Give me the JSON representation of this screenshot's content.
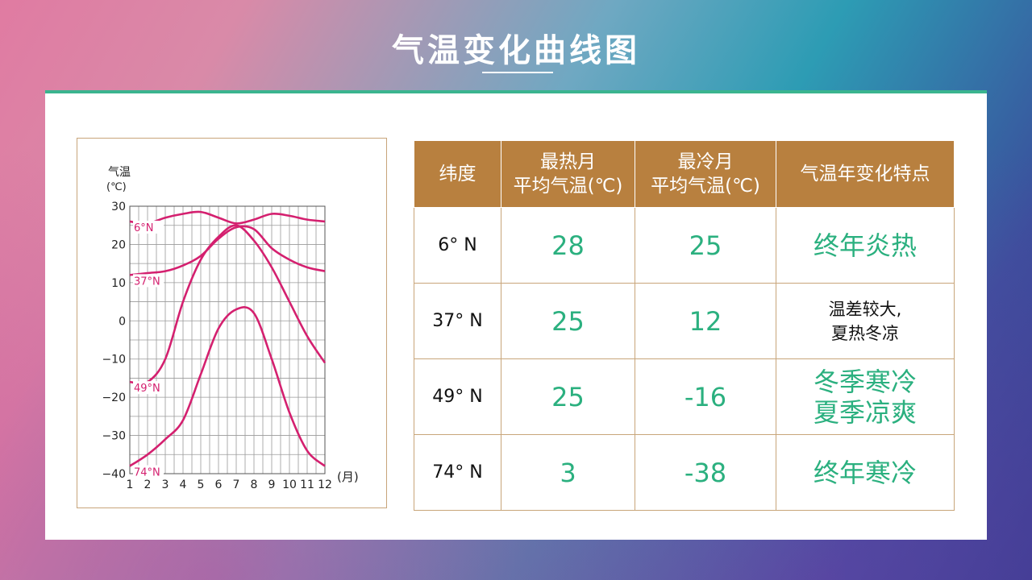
{
  "title": "气温变化曲线图",
  "chart_data": {
    "type": "line",
    "ylabel_line1": "气温",
    "ylabel_line2": "(℃)",
    "x_unit": "(月)",
    "x": [
      1,
      2,
      3,
      4,
      5,
      6,
      7,
      8,
      9,
      10,
      11,
      12
    ],
    "xticks": [
      "1",
      "2",
      "3",
      "4",
      "5",
      "6",
      "7",
      "8",
      "9",
      "10",
      "11",
      "12"
    ],
    "yticks": [
      30,
      20,
      10,
      0,
      -10,
      -20,
      -30,
      -40
    ],
    "ytick_labels": [
      "30",
      "20",
      "10",
      "0",
      "−10",
      "−20",
      "−30",
      "−40"
    ],
    "ylim": [
      -40,
      30
    ],
    "grid": true,
    "line_color": "#d4206f",
    "series": [
      {
        "name": "6°N",
        "values": [
          26,
          25.5,
          27,
          28,
          28.5,
          27,
          25.5,
          26.5,
          28,
          27.5,
          26.5,
          26
        ]
      },
      {
        "name": "37°N",
        "values": [
          12,
          12.5,
          13,
          14.5,
          17,
          21.5,
          24.5,
          24,
          19,
          16,
          14,
          13
        ]
      },
      {
        "name": "49°N",
        "values": [
          -16,
          -16,
          -10,
          5,
          16,
          22,
          25,
          21,
          14,
          5,
          -4,
          -11
        ]
      },
      {
        "name": "74°N",
        "values": [
          -38,
          -35,
          -31,
          -26,
          -14,
          -2,
          3,
          2,
          -10,
          -24,
          -34,
          -38
        ]
      }
    ]
  },
  "table": {
    "headers": [
      "纬度",
      "最热月\n平均气温(℃)",
      "最冷月\n平均气温(℃)",
      "气温年变化特点"
    ],
    "rows": [
      {
        "lat": "6° N",
        "hot": "28",
        "cold": "25",
        "feature": "终年炎热",
        "feature_style": "green"
      },
      {
        "lat": "37° N",
        "hot": "25",
        "cold": "12",
        "feature": "温差较大,\n夏热冬凉",
        "feature_style": "black"
      },
      {
        "lat": "49° N",
        "hot": "25",
        "cold": "-16",
        "feature": "冬季寒冷\n夏季凉爽",
        "feature_style": "green"
      },
      {
        "lat": "74° N",
        "hot": "3",
        "cold": "-38",
        "feature": "终年寒冷",
        "feature_style": "green"
      }
    ]
  }
}
